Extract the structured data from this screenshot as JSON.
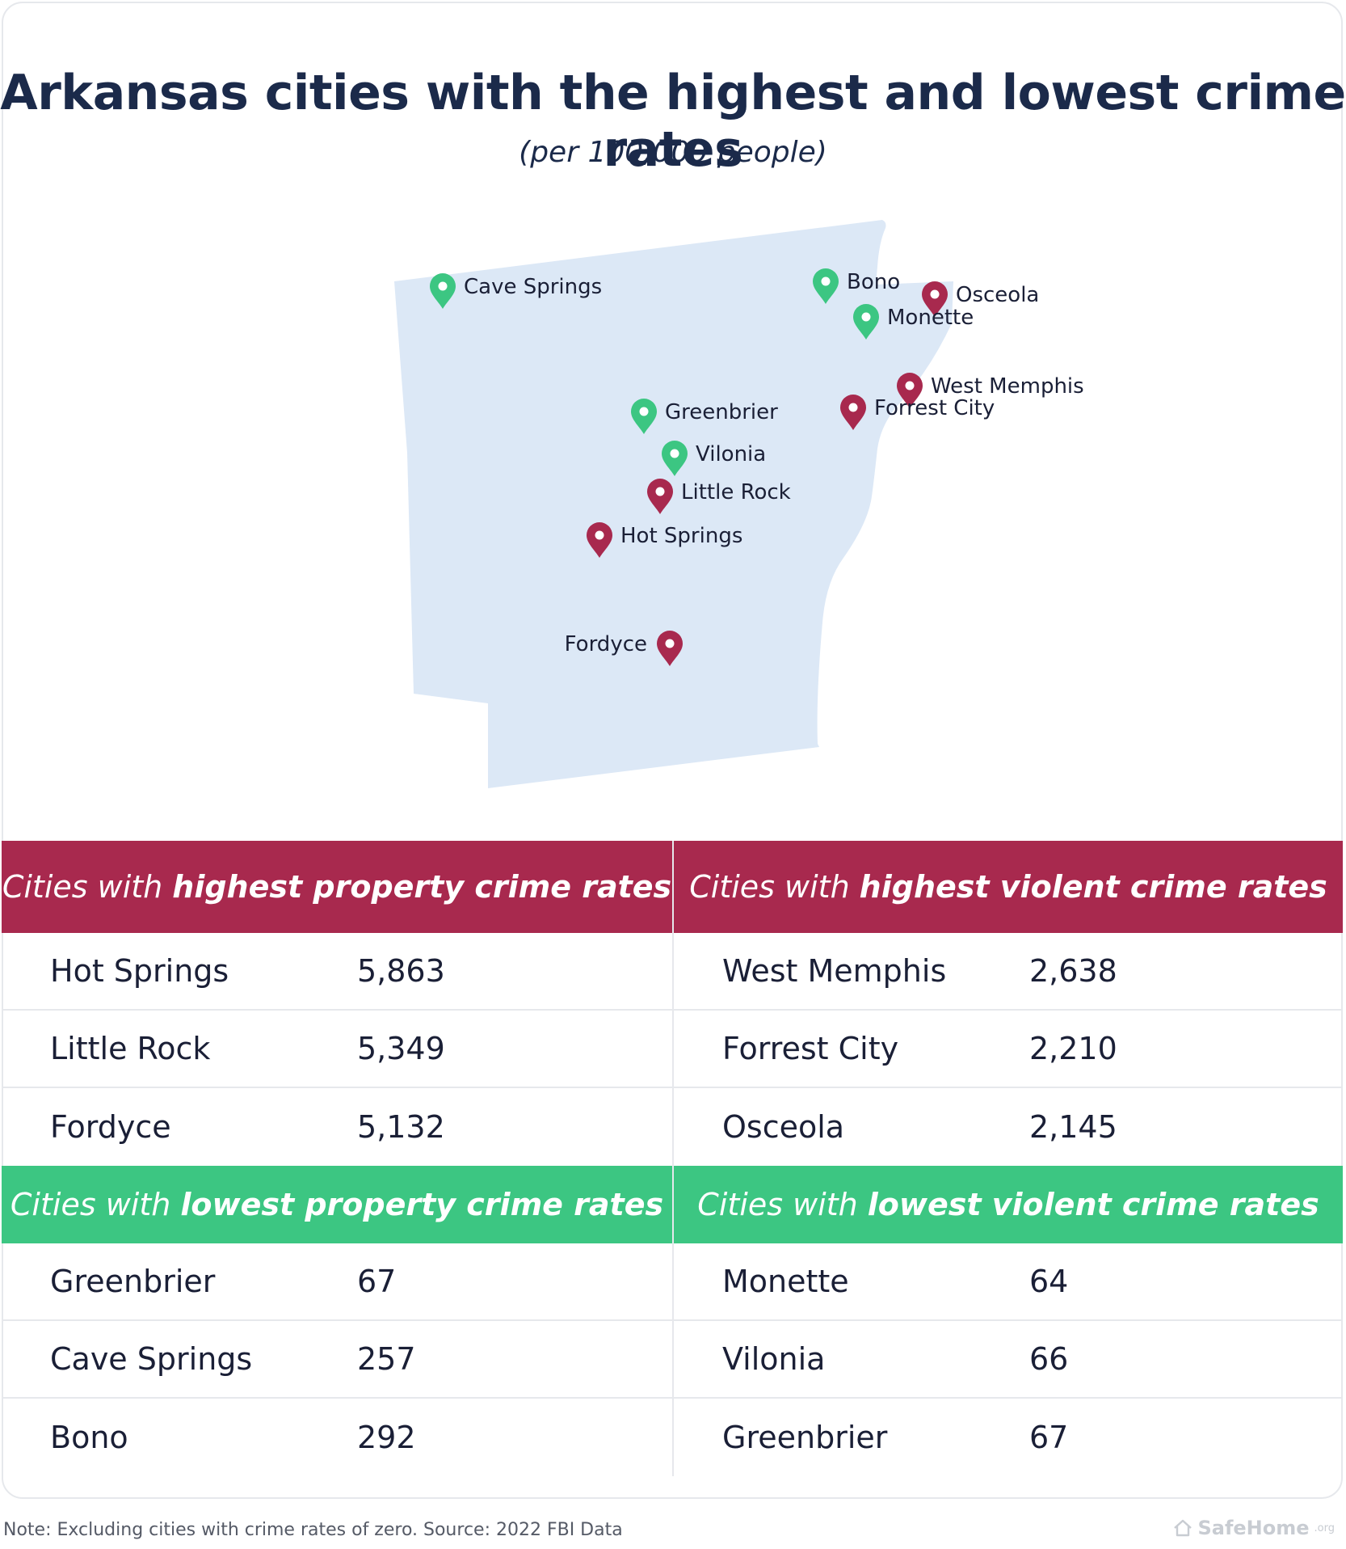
{
  "title": "Arkansas cities with the highest and lowest crime rates",
  "subtitle": "(per 100,000 people)",
  "colors": {
    "high": "#a8294e",
    "low": "#3cc682",
    "state_fill": "#dce8f6"
  },
  "map": {
    "pins": [
      {
        "name": "Cave Springs",
        "group": "low"
      },
      {
        "name": "Bono",
        "group": "low"
      },
      {
        "name": "Osceola",
        "group": "high"
      },
      {
        "name": "Monette",
        "group": "low"
      },
      {
        "name": "West Memphis",
        "group": "high"
      },
      {
        "name": "Forrest City",
        "group": "high"
      },
      {
        "name": "Greenbrier",
        "group": "low"
      },
      {
        "name": "Vilonia",
        "group": "low"
      },
      {
        "name": "Little Rock",
        "group": "high"
      },
      {
        "name": "Hot Springs",
        "group": "high"
      },
      {
        "name": "Fordyce",
        "group": "high"
      }
    ]
  },
  "tables": {
    "high_property": {
      "prefix": "Cities with",
      "emphasis": "highest property crime rates",
      "rows": [
        {
          "city": "Hot Springs",
          "value": "5,863"
        },
        {
          "city": "Little Rock",
          "value": "5,349"
        },
        {
          "city": "Fordyce",
          "value": "5,132"
        }
      ]
    },
    "high_violent": {
      "prefix": "Cities with",
      "emphasis": "highest violent crime rates",
      "rows": [
        {
          "city": "West Memphis",
          "value": "2,638"
        },
        {
          "city": "Forrest City",
          "value": "2,210"
        },
        {
          "city": "Osceola",
          "value": "2,145"
        }
      ]
    },
    "low_property": {
      "prefix": "Cities with",
      "emphasis": "lowest property crime rates",
      "rows": [
        {
          "city": "Greenbrier",
          "value": "67"
        },
        {
          "city": "Cave Springs",
          "value": "257"
        },
        {
          "city": "Bono",
          "value": "292"
        }
      ]
    },
    "low_violent": {
      "prefix": "Cities with",
      "emphasis": "lowest violent crime rates",
      "rows": [
        {
          "city": "Monette",
          "value": "64"
        },
        {
          "city": "Vilonia",
          "value": "66"
        },
        {
          "city": "Greenbrier",
          "value": "67"
        }
      ]
    }
  },
  "footnote": "Note: Excluding cities with crime rates of zero. Source: 2022 FBI Data",
  "brand": {
    "name": "SafeHome",
    "suffix": ".org",
    "icon": "house-icon"
  }
}
